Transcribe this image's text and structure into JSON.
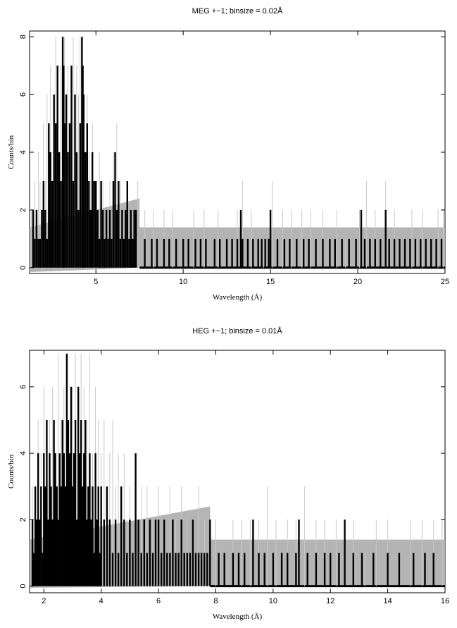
{
  "chart_data": [
    {
      "type": "line",
      "title": "MEG +−1; binsize = 0.02Å",
      "xlabel": "Wavelength (Å)",
      "ylabel": "Counts/bin",
      "xlim": [
        1.2,
        25
      ],
      "ylim": [
        -0.2,
        8.2
      ],
      "xticks": [
        "5",
        "10",
        "15",
        "20",
        "25"
      ],
      "yticks": [
        "0",
        "2",
        "4",
        "6",
        "8"
      ],
      "grid": false,
      "band": {
        "from": 0,
        "to": 1.4,
        "from_x": 1.2,
        "upper_jump_x": 7.5,
        "lower_jump_x": 7.5,
        "lower_before": -0.15
      },
      "series": [
        {
          "style": "gray-thin-spikes",
          "x": [
            1.3,
            1.4,
            1.5,
            1.6,
            1.7,
            1.8,
            1.9,
            2.0,
            2.1,
            2.2,
            2.3,
            2.4,
            2.5,
            2.6,
            2.7,
            2.8,
            2.9,
            3.0,
            3.1,
            3.2,
            3.3,
            3.4,
            3.5,
            3.6,
            3.7,
            3.8,
            3.9,
            4.0,
            4.1,
            4.2,
            4.3,
            4.4,
            4.5,
            4.6,
            4.7,
            4.8,
            4.9,
            5.0,
            5.2,
            5.4,
            5.6,
            5.8,
            6.0,
            6.2,
            6.4,
            6.6,
            6.8,
            7.0,
            7.2,
            7.4,
            7.8,
            8.3,
            8.9,
            9.4,
            10.0,
            10.6,
            11.2,
            12.0,
            13.1,
            13.4,
            13.9,
            14.6,
            15.1,
            15.7,
            16.2,
            16.8,
            17.3,
            18.0,
            18.8,
            19.3,
            20.1,
            20.5,
            21.0,
            21.6,
            22.1,
            22.7,
            23.1,
            23.7,
            24.2,
            24.6,
            24.9
          ],
          "y": [
            2,
            1,
            3,
            2,
            4,
            3,
            1,
            5,
            3,
            6,
            4,
            7,
            3,
            5,
            8,
            6,
            4,
            7,
            6,
            8,
            5,
            7,
            4,
            6,
            8,
            5,
            7,
            6,
            8,
            4,
            5,
            3,
            6,
            4,
            3,
            5,
            2,
            3,
            4,
            3,
            2,
            3,
            4,
            5,
            3,
            2,
            3,
            2,
            2,
            3,
            2,
            2,
            2,
            2,
            1,
            2,
            2,
            2,
            2,
            3,
            2,
            1,
            3,
            2,
            2,
            2,
            2,
            2,
            2,
            1,
            2,
            3,
            2,
            3,
            2,
            1,
            2,
            2,
            1,
            2,
            2
          ]
        },
        {
          "style": "black-thick-spikes",
          "x": [
            1.4,
            1.5,
            1.6,
            1.7,
            1.8,
            1.9,
            2.0,
            2.1,
            2.2,
            2.3,
            2.4,
            2.5,
            2.6,
            2.7,
            2.8,
            2.9,
            3.0,
            3.1,
            3.15,
            3.2,
            3.3,
            3.4,
            3.5,
            3.6,
            3.7,
            3.8,
            3.9,
            4.0,
            4.1,
            4.2,
            4.25,
            4.3,
            4.4,
            4.5,
            4.6,
            4.7,
            4.8,
            4.9,
            5.0,
            5.1,
            5.2,
            5.3,
            5.4,
            5.5,
            5.6,
            5.7,
            5.8,
            5.9,
            6.0,
            6.1,
            6.2,
            6.3,
            6.4,
            6.5,
            6.6,
            6.7,
            6.8,
            6.9,
            7.0,
            7.1,
            7.2,
            7.3,
            7.8,
            8.2,
            8.5,
            8.9,
            9.2,
            9.6,
            10.0,
            10.3,
            10.7,
            11.0,
            11.3,
            11.8,
            12.1,
            12.5,
            12.8,
            13.1,
            13.3,
            13.4,
            13.7,
            14.0,
            14.3,
            14.5,
            14.7,
            14.9,
            15.0,
            15.4,
            15.8,
            16.1,
            16.5,
            16.9,
            17.2,
            17.6,
            18.0,
            18.4,
            18.7,
            19.1,
            19.5,
            19.9,
            20.2,
            20.4,
            20.7,
            21.0,
            21.3,
            21.6,
            21.8,
            22.1,
            22.4,
            22.7,
            23.0,
            23.3,
            23.6,
            23.9,
            24.2,
            24.5,
            24.8
          ],
          "y": [
            2,
            1,
            2,
            1,
            1,
            2,
            3,
            2,
            1,
            5,
            4,
            3,
            6,
            5,
            7,
            4,
            3,
            8,
            7,
            5,
            6,
            4,
            5,
            7,
            3,
            6,
            4,
            2,
            5,
            8,
            7,
            6,
            4,
            5,
            3,
            2,
            4,
            3,
            3,
            2,
            1,
            3,
            2,
            1,
            2,
            1,
            2,
            1,
            3,
            4,
            2,
            3,
            1,
            2,
            1,
            2,
            3,
            1,
            2,
            1,
            2,
            2,
            1,
            1,
            1,
            1,
            1,
            1,
            1,
            1,
            1,
            1,
            1,
            1,
            1,
            1,
            1,
            1,
            2,
            1,
            1,
            1,
            1,
            1,
            1,
            1,
            2,
            1,
            1,
            1,
            1,
            1,
            1,
            1,
            1,
            1,
            1,
            1,
            1,
            1,
            2,
            1,
            1,
            1,
            1,
            2,
            1,
            1,
            1,
            1,
            1,
            1,
            1,
            1,
            1,
            1,
            1
          ]
        }
      ]
    },
    {
      "type": "line",
      "title": "HEG +−1; binsize = 0.01Å",
      "xlabel": "Wavelength (Å)",
      "ylabel": "Counts/bin",
      "xlim": [
        1.5,
        16
      ],
      "ylim": [
        -0.2,
        7.1
      ],
      "xticks": [
        "2",
        "4",
        "6",
        "8",
        "10",
        "12",
        "14",
        "16"
      ],
      "yticks": [
        "0",
        "2",
        "4",
        "6"
      ],
      "grid": false,
      "band": {
        "from": 0,
        "to": 1.4,
        "from_x": 1.5,
        "upper_jump_x": 7.8,
        "lower_jump_x": 7.8,
        "lower_before": -0.05
      },
      "series": [
        {
          "style": "gray-thin-spikes",
          "x": [
            1.6,
            1.7,
            1.8,
            1.9,
            2.0,
            2.1,
            2.2,
            2.3,
            2.4,
            2.5,
            2.6,
            2.7,
            2.8,
            2.9,
            3.0,
            3.1,
            3.2,
            3.3,
            3.4,
            3.5,
            3.6,
            3.7,
            3.8,
            3.9,
            4.0,
            4.1,
            4.2,
            4.3,
            4.4,
            4.5,
            4.6,
            4.7,
            4.8,
            4.9,
            5.0,
            5.2,
            5.4,
            5.6,
            5.8,
            6.0,
            6.2,
            6.4,
            6.6,
            6.8,
            7.0,
            7.2,
            7.4,
            7.6,
            7.8,
            8.0,
            8.3,
            8.6,
            8.9,
            9.2,
            9.5,
            9.8,
            10.1,
            10.5,
            10.8,
            11.1,
            11.5,
            11.8,
            12.2,
            12.5,
            12.8,
            13.2,
            13.6,
            14.0,
            14.4,
            14.8,
            15.2,
            15.6,
            15.9
          ],
          "y": [
            3,
            2,
            5,
            4,
            6,
            3,
            5,
            6,
            4,
            7,
            5,
            6,
            7,
            4,
            6,
            7,
            5,
            7,
            6,
            5,
            7,
            4,
            6,
            5,
            4,
            5,
            3,
            4,
            5,
            3,
            4,
            3,
            4,
            2,
            3,
            4,
            3,
            3,
            2,
            3,
            2,
            3,
            2,
            3,
            2,
            2,
            3,
            2,
            2,
            2,
            1,
            2,
            2,
            2,
            2,
            3,
            2,
            2,
            2,
            3,
            2,
            2,
            2,
            2,
            2,
            1,
            2,
            2,
            1,
            2,
            2,
            2,
            2
          ]
        },
        {
          "style": "black-thick-spikes",
          "x": [
            1.6,
            1.65,
            1.7,
            1.75,
            1.8,
            1.85,
            1.9,
            1.95,
            2.0,
            2.05,
            2.1,
            2.15,
            2.2,
            2.25,
            2.3,
            2.35,
            2.4,
            2.45,
            2.5,
            2.55,
            2.6,
            2.65,
            2.7,
            2.75,
            2.8,
            2.85,
            2.9,
            2.95,
            3.0,
            3.05,
            3.1,
            3.15,
            3.2,
            3.25,
            3.3,
            3.35,
            3.4,
            3.45,
            3.5,
            3.55,
            3.6,
            3.65,
            3.7,
            3.75,
            3.8,
            3.85,
            3.9,
            3.95,
            4.0,
            4.1,
            4.2,
            4.3,
            4.4,
            4.5,
            4.6,
            4.7,
            4.8,
            4.9,
            5.0,
            5.1,
            5.2,
            5.3,
            5.4,
            5.5,
            5.6,
            5.7,
            5.8,
            5.9,
            6.0,
            6.1,
            6.2,
            6.3,
            6.4,
            6.5,
            6.6,
            6.7,
            6.8,
            6.9,
            7.0,
            7.1,
            7.2,
            7.3,
            7.4,
            7.5,
            7.6,
            7.7,
            7.8,
            8.1,
            8.3,
            8.6,
            8.8,
            9.0,
            9.3,
            9.5,
            9.7,
            10.0,
            10.3,
            10.5,
            10.8,
            10.9,
            11.2,
            11.5,
            11.8,
            12.0,
            12.3,
            12.5,
            12.8,
            13.1,
            13.5,
            14.0,
            14.4,
            14.9,
            15.3,
            15.6
          ],
          "y": [
            2,
            1,
            3,
            2,
            4,
            2,
            3,
            1,
            4,
            3,
            5,
            2,
            4,
            3,
            2,
            5,
            4,
            3,
            2,
            4,
            3,
            5,
            4,
            3,
            7,
            5,
            4,
            6,
            3,
            4,
            5,
            2,
            6,
            4,
            5,
            3,
            4,
            5,
            2,
            3,
            4,
            2,
            3,
            1,
            4,
            2,
            3,
            1,
            3,
            2,
            3,
            2,
            1,
            2,
            1,
            3,
            2,
            1,
            2,
            1,
            4,
            2,
            1,
            2,
            1,
            2,
            1,
            2,
            2,
            1,
            2,
            1,
            1,
            2,
            1,
            1,
            2,
            1,
            1,
            1,
            2,
            1,
            1,
            1,
            1,
            1,
            2,
            1,
            1,
            1,
            1,
            1,
            2,
            1,
            1,
            1,
            1,
            1,
            1,
            2,
            1,
            1,
            1,
            1,
            1,
            2,
            1,
            1,
            1,
            1,
            1,
            1,
            1,
            1
          ]
        }
      ]
    }
  ]
}
